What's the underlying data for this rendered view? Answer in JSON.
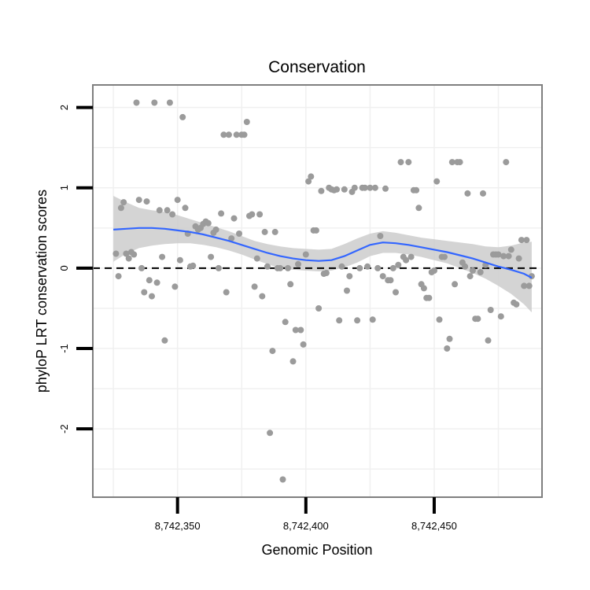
{
  "chart_data": {
    "type": "scatter",
    "title": "Conservation",
    "xlabel": "Genomic Position",
    "ylabel": "phyloP LRT conservation scores",
    "xlim": [
      8742317,
      8742492
    ],
    "ylim": [
      -2.85,
      2.28
    ],
    "x_ticks": [
      8742350,
      8742400,
      8742450
    ],
    "x_tick_labels": [
      "8,742,350",
      "8,742,400",
      "8,742,450"
    ],
    "y_ticks": [
      -2,
      -1,
      0,
      1,
      2
    ],
    "y_tick_labels": [
      "-2",
      "-1",
      "0",
      "1",
      "2"
    ],
    "reference_line": {
      "y": 0,
      "style": "dashed"
    },
    "grid": true,
    "colors": {
      "points": "#9b9b9b",
      "smooth_line": "#3366ff",
      "confidence_band": "#cccccc",
      "panel_border": "#7f7f7f",
      "grid": "#f0f0f0",
      "reference_line": "#000000"
    },
    "smooth": {
      "x": [
        8742325,
        8742330,
        8742335,
        8742340,
        8742345,
        8742350,
        8742355,
        8742360,
        8742365,
        8742370,
        8742375,
        8742380,
        8742385,
        8742390,
        8742395,
        8742400,
        8742405,
        8742410,
        8742415,
        8742420,
        8742425,
        8742430,
        8742435,
        8742440,
        8742445,
        8742450,
        8742455,
        8742460,
        8742465,
        8742470,
        8742475,
        8742480,
        8742485,
        8742488
      ],
      "y": [
        0.48,
        0.49,
        0.5,
        0.5,
        0.49,
        0.47,
        0.45,
        0.42,
        0.38,
        0.34,
        0.29,
        0.24,
        0.19,
        0.15,
        0.12,
        0.1,
        0.09,
        0.1,
        0.15,
        0.22,
        0.29,
        0.32,
        0.31,
        0.29,
        0.26,
        0.23,
        0.2,
        0.16,
        0.12,
        0.07,
        0.02,
        -0.02,
        -0.07,
        -0.12
      ],
      "lower": [
        0.08,
        0.18,
        0.25,
        0.28,
        0.3,
        0.31,
        0.31,
        0.29,
        0.26,
        0.22,
        0.17,
        0.11,
        0.05,
        0.0,
        -0.02,
        -0.03,
        -0.04,
        -0.03,
        0.01,
        0.07,
        0.15,
        0.19,
        0.19,
        0.17,
        0.14,
        0.1,
        0.06,
        0.0,
        -0.06,
        -0.13,
        -0.22,
        -0.32,
        -0.45,
        -0.55
      ],
      "upper": [
        0.9,
        0.82,
        0.75,
        0.72,
        0.7,
        0.66,
        0.61,
        0.56,
        0.51,
        0.46,
        0.4,
        0.34,
        0.3,
        0.27,
        0.25,
        0.24,
        0.23,
        0.24,
        0.3,
        0.37,
        0.43,
        0.46,
        0.44,
        0.41,
        0.38,
        0.36,
        0.34,
        0.32,
        0.3,
        0.27,
        0.26,
        0.28,
        0.32,
        0.33
      ]
    },
    "points": [
      [
        8742326,
        0.18
      ],
      [
        8742327,
        -0.1
      ],
      [
        8742328,
        0.75
      ],
      [
        8742329,
        0.82
      ],
      [
        8742330,
        0.18
      ],
      [
        8742331,
        0.12
      ],
      [
        8742332,
        0.2
      ],
      [
        8742333,
        0.17
      ],
      [
        8742334,
        2.06
      ],
      [
        8742335,
        0.85
      ],
      [
        8742336,
        0.0
      ],
      [
        8742337,
        -0.3
      ],
      [
        8742338,
        0.83
      ],
      [
        8742339,
        -0.15
      ],
      [
        8742340,
        -0.35
      ],
      [
        8742341,
        2.06
      ],
      [
        8742342,
        -0.18
      ],
      [
        8742343,
        0.72
      ],
      [
        8742344,
        0.14
      ],
      [
        8742345,
        -0.9
      ],
      [
        8742346,
        0.72
      ],
      [
        8742347,
        2.06
      ],
      [
        8742348,
        0.67
      ],
      [
        8742349,
        -0.23
      ],
      [
        8742350,
        0.85
      ],
      [
        8742351,
        0.1
      ],
      [
        8742352,
        1.88
      ],
      [
        8742353,
        0.75
      ],
      [
        8742354,
        0.43
      ],
      [
        8742355,
        0.02
      ],
      [
        8742356,
        0.03
      ],
      [
        8742357,
        0.52
      ],
      [
        8742358,
        0.48
      ],
      [
        8742359,
        0.5
      ],
      [
        8742360,
        0.55
      ],
      [
        8742361,
        0.58
      ],
      [
        8742362,
        0.56
      ],
      [
        8742363,
        0.14
      ],
      [
        8742364,
        0.44
      ],
      [
        8742365,
        0.48
      ],
      [
        8742366,
        0.0
      ],
      [
        8742367,
        0.68
      ],
      [
        8742368,
        1.66
      ],
      [
        8742369,
        -0.3
      ],
      [
        8742370,
        1.66
      ],
      [
        8742371,
        0.37
      ],
      [
        8742372,
        0.62
      ],
      [
        8742373,
        1.66
      ],
      [
        8742374,
        0.43
      ],
      [
        8742375,
        1.66
      ],
      [
        8742376,
        1.66
      ],
      [
        8742377,
        1.82
      ],
      [
        8742378,
        0.65
      ],
      [
        8742379,
        0.67
      ],
      [
        8742380,
        -0.23
      ],
      [
        8742381,
        0.12
      ],
      [
        8742382,
        0.67
      ],
      [
        8742383,
        -0.35
      ],
      [
        8742384,
        0.45
      ],
      [
        8742385,
        0.02
      ],
      [
        8742386,
        -2.05
      ],
      [
        8742387,
        -1.03
      ],
      [
        8742388,
        0.45
      ],
      [
        8742389,
        0.0
      ],
      [
        8742390,
        0.0
      ],
      [
        8742391,
        -2.63
      ],
      [
        8742392,
        -0.67
      ],
      [
        8742393,
        0.0
      ],
      [
        8742394,
        -0.2
      ],
      [
        8742395,
        -1.16
      ],
      [
        8742396,
        -0.77
      ],
      [
        8742397,
        0.05
      ],
      [
        8742398,
        -0.77
      ],
      [
        8742399,
        -0.95
      ],
      [
        8742400,
        0.17
      ],
      [
        8742401,
        1.08
      ],
      [
        8742402,
        1.14
      ],
      [
        8742403,
        0.47
      ],
      [
        8742404,
        0.47
      ],
      [
        8742405,
        -0.5
      ],
      [
        8742406,
        0.96
      ],
      [
        8742407,
        -0.07
      ],
      [
        8742408,
        -0.06
      ],
      [
        8742409,
        1.0
      ],
      [
        8742410,
        0.98
      ],
      [
        8742411,
        0.97
      ],
      [
        8742412,
        0.98
      ],
      [
        8742413,
        -0.65
      ],
      [
        8742414,
        0.02
      ],
      [
        8742415,
        0.98
      ],
      [
        8742416,
        -0.28
      ],
      [
        8742417,
        -0.1
      ],
      [
        8742418,
        0.95
      ],
      [
        8742419,
        1.0
      ],
      [
        8742420,
        -0.65
      ],
      [
        8742421,
        0.0
      ],
      [
        8742422,
        1.0
      ],
      [
        8742423,
        1.0
      ],
      [
        8742424,
        0.02
      ],
      [
        8742425,
        1.0
      ],
      [
        8742426,
        -0.64
      ],
      [
        8742427,
        1.0
      ],
      [
        8742428,
        0.0
      ],
      [
        8742429,
        0.4
      ],
      [
        8742430,
        -0.1
      ],
      [
        8742431,
        0.99
      ],
      [
        8742432,
        -0.15
      ],
      [
        8742433,
        -0.15
      ],
      [
        8742434,
        0.0
      ],
      [
        8742435,
        -0.3
      ],
      [
        8742436,
        0.04
      ],
      [
        8742437,
        1.32
      ],
      [
        8742438,
        0.14
      ],
      [
        8742439,
        0.1
      ],
      [
        8742440,
        1.32
      ],
      [
        8742441,
        0.14
      ],
      [
        8742442,
        0.97
      ],
      [
        8742443,
        0.97
      ],
      [
        8742444,
        0.75
      ],
      [
        8742445,
        -0.2
      ],
      [
        8742446,
        -0.25
      ],
      [
        8742447,
        -0.37
      ],
      [
        8742448,
        -0.37
      ],
      [
        8742449,
        -0.05
      ],
      [
        8742450,
        -0.03
      ],
      [
        8742451,
        1.08
      ],
      [
        8742452,
        -0.64
      ],
      [
        8742453,
        0.14
      ],
      [
        8742454,
        0.14
      ],
      [
        8742455,
        -1.0
      ],
      [
        8742456,
        -0.88
      ],
      [
        8742457,
        1.32
      ],
      [
        8742458,
        -0.2
      ],
      [
        8742459,
        1.32
      ],
      [
        8742460,
        1.32
      ],
      [
        8742461,
        0.07
      ],
      [
        8742462,
        0.02
      ],
      [
        8742463,
        0.93
      ],
      [
        8742464,
        -0.1
      ],
      [
        8742465,
        -0.03
      ],
      [
        8742466,
        -0.63
      ],
      [
        8742467,
        -0.63
      ],
      [
        8742468,
        -0.05
      ],
      [
        8742469,
        0.93
      ],
      [
        8742470,
        0.04
      ],
      [
        8742471,
        -0.9
      ],
      [
        8742472,
        -0.52
      ],
      [
        8742473,
        0.17
      ],
      [
        8742474,
        0.17
      ],
      [
        8742475,
        0.17
      ],
      [
        8742476,
        -0.6
      ],
      [
        8742477,
        0.15
      ],
      [
        8742478,
        1.32
      ],
      [
        8742479,
        0.15
      ],
      [
        8742480,
        0.23
      ],
      [
        8742481,
        -0.43
      ],
      [
        8742482,
        -0.45
      ],
      [
        8742483,
        0.12
      ],
      [
        8742484,
        0.35
      ],
      [
        8742485,
        -0.22
      ],
      [
        8742486,
        0.35
      ],
      [
        8742487,
        -0.22
      ],
      [
        8742488,
        -0.1
      ]
    ]
  }
}
